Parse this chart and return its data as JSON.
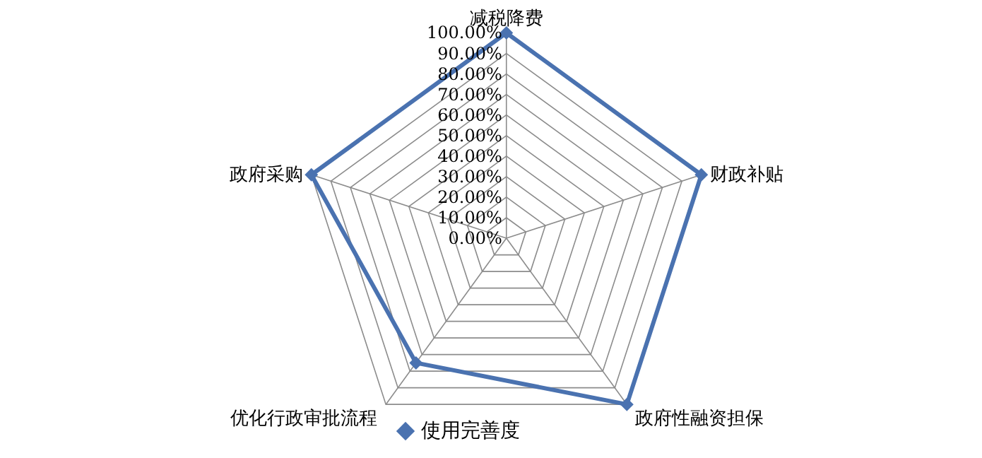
{
  "chart_data": {
    "type": "radar",
    "categories": [
      "减税降费",
      "财政补贴",
      "政府性融资担保",
      "优化行政审批流程",
      "政府采购"
    ],
    "series": [
      {
        "name": "使用完善度",
        "color": "#4a72b0",
        "values": [
          100,
          100,
          100,
          75,
          100
        ]
      }
    ],
    "ylim": [
      0,
      100
    ],
    "yticks": [
      {
        "value": 0,
        "label": "0.00%"
      },
      {
        "value": 10,
        "label": "10.00%"
      },
      {
        "value": 20,
        "label": "20.00%"
      },
      {
        "value": 30,
        "label": "30.00%"
      },
      {
        "value": 40,
        "label": "40.00%"
      },
      {
        "value": 50,
        "label": "50.00%"
      },
      {
        "value": 60,
        "label": "60.00%"
      },
      {
        "value": 70,
        "label": "70.00%"
      },
      {
        "value": 80,
        "label": "80.00%"
      },
      {
        "value": 90,
        "label": "90.00%"
      },
      {
        "value": 100,
        "label": "100.00%"
      }
    ],
    "grid": true,
    "marker": "diamond",
    "legend": "bottom"
  }
}
